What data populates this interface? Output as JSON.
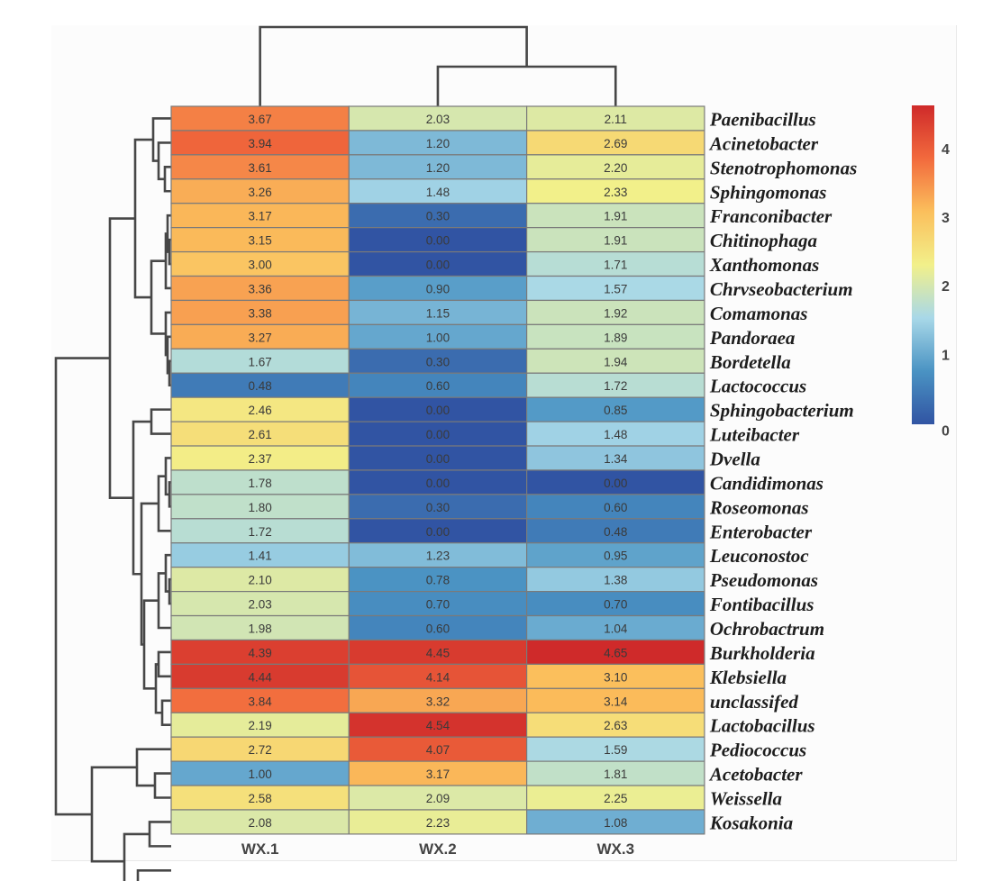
{
  "chart_data": {
    "type": "heatmap",
    "title": "",
    "columns": [
      "WX.1",
      "WX.2",
      "WX.3"
    ],
    "rows": [
      "Paenibacillus",
      "Acinetobacter",
      "Stenotrophomonas",
      "Sphingomonas",
      "Franconibacter",
      "Chitinophaga",
      "Xanthomonas",
      "Chrvseobacterium",
      "Comamonas",
      "Pandoraea",
      "Bordetella",
      "Lactococcus",
      "Sphingobacterium",
      "Luteibacter",
      "Dvella",
      "Candidimonas",
      "Roseomonas",
      "Enterobacter",
      "Leuconostoc",
      "Pseudomonas",
      "Fontibacillus",
      "Ochrobactrum",
      "Burkholderia",
      "Klebsiella",
      "unclassifed",
      "Lactobacillus",
      "Pediococcus",
      "Acetobacter",
      "Weissella",
      "Kosakonia"
    ],
    "values": [
      [
        3.67,
        2.03,
        2.11
      ],
      [
        3.94,
        1.2,
        2.69
      ],
      [
        3.61,
        1.2,
        2.2
      ],
      [
        3.26,
        1.48,
        2.33
      ],
      [
        3.17,
        0.3,
        1.91
      ],
      [
        3.15,
        0.0,
        1.91
      ],
      [
        3.0,
        0.0,
        1.71
      ],
      [
        3.36,
        0.9,
        1.57
      ],
      [
        3.38,
        1.15,
        1.92
      ],
      [
        3.27,
        1.0,
        1.89
      ],
      [
        1.67,
        0.3,
        1.94
      ],
      [
        0.48,
        0.6,
        1.72
      ],
      [
        2.46,
        0.0,
        0.85
      ],
      [
        2.61,
        0.0,
        1.48
      ],
      [
        2.37,
        0.0,
        1.34
      ],
      [
        1.78,
        0.0,
        0.0
      ],
      [
        1.8,
        0.3,
        0.6
      ],
      [
        1.72,
        0.0,
        0.48
      ],
      [
        1.41,
        1.23,
        0.95
      ],
      [
        2.1,
        0.78,
        1.38
      ],
      [
        2.03,
        0.7,
        0.7
      ],
      [
        1.98,
        0.6,
        1.04
      ],
      [
        4.39,
        4.45,
        4.65
      ],
      [
        4.44,
        4.14,
        3.1
      ],
      [
        3.84,
        3.32,
        3.14
      ],
      [
        2.19,
        4.54,
        2.63
      ],
      [
        2.72,
        4.07,
        1.59
      ],
      [
        1.0,
        3.17,
        1.81
      ],
      [
        2.58,
        2.09,
        2.25
      ],
      [
        2.08,
        2.23,
        1.08
      ]
    ],
    "colorbar": {
      "range": [
        0,
        4.65
      ],
      "ticks": [
        "0",
        "1",
        "2",
        "3",
        "4"
      ],
      "colors": [
        "#3154a3",
        "#4a93c3",
        "#a8d8e8",
        "#f2f08a",
        "#fbbf5c",
        "#f26a3d",
        "#cf2a2a"
      ],
      "placement": "right"
    },
    "column_dendrogram": "WX.1 | (WX.2, WX.3)",
    "row_dendrogram": "hierarchical clustering of 30 genera"
  }
}
